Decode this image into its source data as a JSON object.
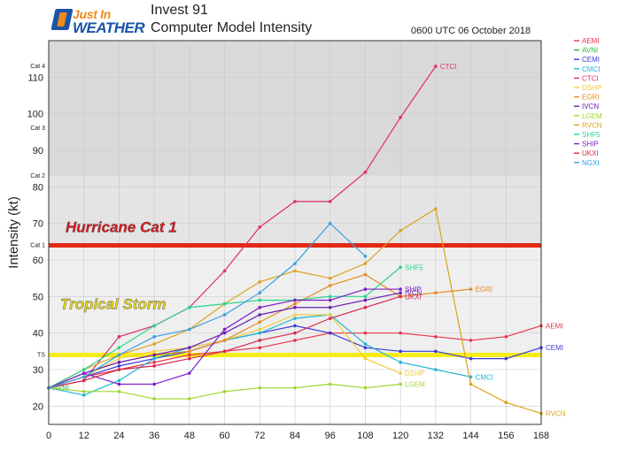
{
  "header": {
    "logo_line1": "Just In",
    "logo_line2": "WEATHER",
    "title": "Invest 91",
    "subtitle": "Computer Model Intensity",
    "run_time": "0600 UTC 06 October 2018"
  },
  "chart_data": {
    "type": "line",
    "xlabel": "",
    "ylabel": "Intensity (kt)",
    "xlim": [
      0,
      168
    ],
    "ylim": [
      15,
      120
    ],
    "x_ticks": [
      0,
      12,
      24,
      36,
      48,
      60,
      72,
      84,
      96,
      108,
      120,
      132,
      144,
      156,
      168
    ],
    "y_ticks": [
      20,
      30,
      40,
      50,
      60,
      70,
      80,
      90,
      100,
      110
    ],
    "grid": true,
    "legend_position": "right-outside",
    "category_labels": [
      {
        "label": "TS",
        "value": 34
      },
      {
        "label": "Cat 1",
        "value": 64
      },
      {
        "label": "Cat 2",
        "value": 83
      },
      {
        "label": "Cat 3",
        "value": 96
      },
      {
        "label": "Cat 4",
        "value": 113
      }
    ],
    "bands": [
      {
        "from": 34,
        "to": 64,
        "color": "#efefef"
      },
      {
        "from": 64,
        "to": 83,
        "color": "#e4e4e4"
      },
      {
        "from": 83,
        "to": 120,
        "color": "#d9d9d9"
      }
    ],
    "thresholds": [
      {
        "value": 64,
        "label": "Hurricane Cat 1",
        "line_color": "#e02a14",
        "label_color": "#e0141e"
      },
      {
        "value": 34,
        "label": "Tropical Storm",
        "line_color": "#f6ec18",
        "label_color": "#e8d910"
      }
    ],
    "series": [
      {
        "name": "AEMI",
        "color": "#e8364b",
        "x": [
          0,
          12,
          24,
          36,
          48,
          60,
          72,
          84,
          96,
          108,
          120,
          132,
          144,
          156,
          168
        ],
        "y": [
          25,
          28,
          30,
          32,
          34,
          35,
          36,
          38,
          40,
          40,
          40,
          39,
          38,
          39,
          42
        ],
        "end_label": "AEMI"
      },
      {
        "name": "AVNI",
        "color": "#2db83a",
        "x": [
          0
        ],
        "y": [
          25
        ],
        "end_label": "AVNI"
      },
      {
        "name": "CEMI",
        "color": "#3b3bd6",
        "x": [
          0,
          12,
          24,
          36,
          48,
          60,
          72,
          84,
          96,
          108,
          120,
          132,
          144,
          156,
          168
        ],
        "y": [
          25,
          28,
          31,
          33,
          35,
          38,
          40,
          42,
          40,
          36,
          35,
          35,
          33,
          33,
          36
        ],
        "end_label": "CEMI"
      },
      {
        "name": "CMCI",
        "color": "#1fb6d6",
        "x": [
          0,
          12,
          24,
          36,
          48,
          60,
          72,
          84,
          96,
          108,
          120,
          132,
          144
        ],
        "y": [
          25,
          23,
          27,
          33,
          36,
          38,
          40,
          44,
          45,
          37,
          32,
          30,
          28
        ],
        "end_label": "CMCI"
      },
      {
        "name": "CTCI",
        "color": "#e02a6e",
        "x": [
          0,
          12,
          24,
          36,
          48,
          60,
          72,
          84,
          96,
          108,
          120,
          132
        ],
        "y": [
          25,
          27,
          39,
          42,
          47,
          57,
          69,
          76,
          76,
          84,
          99,
          113
        ],
        "end_label": "CTCI"
      },
      {
        "name": "DSHP",
        "color": "#f2cc3c",
        "x": [
          0,
          12,
          24,
          36,
          48,
          60,
          72,
          84,
          96,
          108,
          120
        ],
        "y": [
          25,
          28,
          33,
          35,
          36,
          38,
          41,
          45,
          45,
          33,
          29
        ],
        "end_label": "DSHP"
      },
      {
        "name": "EGRI",
        "color": "#e8891e",
        "x": [
          0,
          12,
          24,
          36,
          48,
          60,
          72,
          84,
          96,
          108,
          120,
          132,
          144
        ],
        "y": [
          25,
          29,
          32,
          34,
          35,
          38,
          43,
          48,
          53,
          56,
          50,
          51,
          52
        ],
        "end_label": "EGRI"
      },
      {
        "name": "IVCN",
        "color": "#6a1eb0",
        "x": [
          0,
          12,
          24,
          36,
          48,
          60,
          72,
          84,
          96,
          108,
          120
        ],
        "y": [
          25,
          29,
          32,
          34,
          36,
          40,
          45,
          47,
          47,
          49,
          51
        ],
        "end_label": "IVCN"
      },
      {
        "name": "LGEM",
        "color": "#9fd62d",
        "x": [
          0,
          12,
          24,
          36,
          48,
          60,
          72,
          84,
          96,
          108,
          120
        ],
        "y": [
          25,
          24,
          24,
          22,
          22,
          24,
          25,
          25,
          26,
          25,
          26
        ],
        "end_label": "LGEM"
      },
      {
        "name": "RVCN",
        "color": "#dba21c",
        "x": [
          0,
          12,
          24,
          36,
          48,
          60,
          72,
          84,
          96,
          108,
          120,
          132,
          144,
          156,
          168
        ],
        "y": [
          25,
          30,
          34,
          37,
          41,
          48,
          54,
          57,
          55,
          59,
          68,
          74,
          26,
          21,
          18
        ],
        "end_label": "RVCN"
      },
      {
        "name": "SHF5",
        "color": "#27d68c",
        "x": [
          0,
          12,
          24,
          36,
          48,
          60,
          72,
          84,
          96,
          108,
          120
        ],
        "y": [
          25,
          30,
          36,
          42,
          47,
          48,
          49,
          49,
          50,
          50,
          58
        ],
        "end_label": "SHF5"
      },
      {
        "name": "SHIP",
        "color": "#7d1ec8",
        "x": [
          0,
          12,
          24,
          36,
          48,
          60,
          72,
          84,
          96,
          108,
          120
        ],
        "y": [
          25,
          29,
          26,
          26,
          29,
          41,
          47,
          49,
          49,
          52,
          52
        ],
        "end_label": "SHIP"
      },
      {
        "name": "UKXI",
        "color": "#d6264a",
        "x": [
          0,
          12,
          24,
          36,
          48,
          60,
          72,
          84,
          96,
          108,
          120
        ],
        "y": [
          25,
          27,
          30,
          31,
          33,
          35,
          38,
          40,
          44,
          47,
          50
        ],
        "end_label": "UKXI"
      },
      {
        "name": "NGXI",
        "color": "#3aa0e0",
        "x": [
          0,
          12,
          24,
          36,
          48,
          60,
          72,
          84,
          96,
          108
        ],
        "y": [
          25,
          28,
          34,
          39,
          41,
          45,
          51,
          59,
          70,
          61
        ],
        "end_label": ""
      }
    ]
  }
}
